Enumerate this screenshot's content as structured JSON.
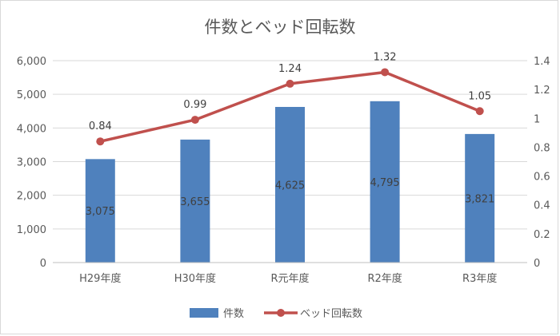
{
  "chart_data": {
    "type": "bar",
    "title": "件数とベッド回転数",
    "categories": [
      "H29年度",
      "H30年度",
      "R元年度",
      "R2年度",
      "R3年度"
    ],
    "series": [
      {
        "name": "件数",
        "type": "bar",
        "axis": "left",
        "values": [
          3075,
          3655,
          4625,
          4795,
          3821
        ],
        "labels": [
          "3,075",
          "3,655",
          "4,625",
          "4,795",
          "3,821"
        ],
        "color": "#4f81bd"
      },
      {
        "name": "ベッド回転数",
        "type": "line",
        "axis": "right",
        "values": [
          0.84,
          0.99,
          1.24,
          1.32,
          1.05
        ],
        "labels": [
          "0.84",
          "0.99",
          "1.24",
          "1.32",
          "1.05"
        ],
        "color": "#c0504d"
      }
    ],
    "y_left": {
      "ylim": [
        0,
        6000
      ],
      "ticks": [
        0,
        1000,
        2000,
        3000,
        4000,
        5000,
        6000
      ],
      "tick_labels": [
        "0",
        "1,000",
        "2,000",
        "3,000",
        "4,000",
        "5,000",
        "6,000"
      ]
    },
    "y_right": {
      "ylim": [
        0,
        1.4
      ],
      "ticks": [
        0,
        0.2,
        0.4,
        0.6,
        0.8,
        1.0,
        1.2,
        1.4
      ],
      "tick_labels": [
        "0",
        "0.2",
        "0.4",
        "0.6",
        "0.8",
        "1",
        "1.2",
        "1.4"
      ]
    },
    "grid": true,
    "gridline_color": "#d9d9d9",
    "legend": "bottom"
  }
}
